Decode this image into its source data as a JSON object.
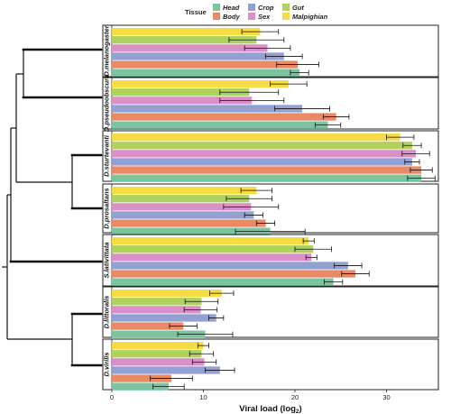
{
  "chart_data": {
    "type": "bar",
    "orientation": "horizontal",
    "xlabel": "Viral load (log",
    "xlabel_subscript": "2",
    "xlabel_suffix": ")",
    "xlim": [
      0,
      35
    ],
    "xticks": [
      0,
      10,
      20,
      30
    ],
    "grid": false,
    "legend": {
      "title": "Tissue",
      "placement": "top",
      "entries": [
        {
          "name": "Head",
          "color": "#7cc4a0"
        },
        {
          "name": "Body",
          "color": "#e98a64"
        },
        {
          "name": "Crop",
          "color": "#93a1d2"
        },
        {
          "name": "Sex",
          "color": "#db8fc9"
        },
        {
          "name": "Gut",
          "color": "#aed25c"
        },
        {
          "name": "Malpighian",
          "color": "#f5dc45"
        }
      ]
    },
    "bar_order": [
      "Malpighian",
      "Gut",
      "Sex",
      "Crop",
      "Body",
      "Head"
    ],
    "panels": [
      {
        "species": "D.melanogaster",
        "values": [
          16.2,
          15.8,
          17.0,
          18.8,
          20.3,
          20.5
        ],
        "errors": [
          2.0,
          3.0,
          2.5,
          2.0,
          2.3,
          1.0
        ]
      },
      {
        "species": "D.pseudoobscura",
        "values": [
          19.3,
          15.0,
          15.3,
          20.8,
          24.5,
          23.6
        ],
        "errors": [
          2.0,
          3.2,
          3.5,
          3.0,
          1.4,
          1.4
        ]
      },
      {
        "species": "D.sturtevanti",
        "values": [
          31.5,
          32.8,
          33.2,
          32.8,
          33.8,
          33.8
        ],
        "errors": [
          1.5,
          1.0,
          1.5,
          0.8,
          1.2,
          1.5
        ]
      },
      {
        "species": "D.prosaltans",
        "values": [
          15.8,
          15.0,
          15.2,
          15.5,
          16.8,
          17.3
        ],
        "errors": [
          1.7,
          2.5,
          3.0,
          1.0,
          1.0,
          3.8
        ]
      },
      {
        "species": "S.lativittata",
        "values": [
          21.5,
          22.0,
          21.8,
          25.8,
          26.6,
          24.2
        ],
        "errors": [
          0.6,
          2.0,
          0.6,
          1.5,
          1.5,
          1.0
        ]
      },
      {
        "species": "D.littoralis",
        "values": [
          12.0,
          9.8,
          9.7,
          11.4,
          7.8,
          10.2
        ],
        "errors": [
          1.3,
          1.8,
          1.8,
          0.8,
          1.5,
          3.0
        ]
      },
      {
        "species": "D.virilis",
        "values": [
          10.0,
          9.8,
          10.1,
          11.8,
          6.5,
          6.2
        ],
        "errors": [
          0.6,
          1.3,
          1.3,
          1.6,
          2.3,
          1.7
        ]
      }
    ]
  }
}
